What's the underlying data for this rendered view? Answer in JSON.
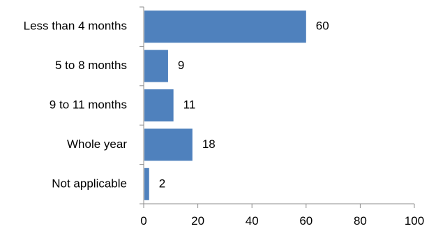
{
  "chart_data": {
    "type": "bar",
    "orientation": "horizontal",
    "categories": [
      "Less than 4 months",
      "5 to 8 months",
      "9 to 11 months",
      "Whole year",
      "Not applicable"
    ],
    "values": [
      60,
      9,
      11,
      18,
      2
    ],
    "value_labels": [
      "60",
      "9",
      "11",
      "18",
      "2"
    ],
    "xlim": [
      0,
      100
    ],
    "xticks": [
      0,
      20,
      40,
      60,
      80,
      100
    ],
    "xtick_labels": [
      "0",
      "20",
      "40",
      "60",
      "80",
      "100"
    ],
    "grid": false,
    "bar_color": "#4f81bd",
    "title": "",
    "xlabel": "",
    "ylabel": ""
  }
}
